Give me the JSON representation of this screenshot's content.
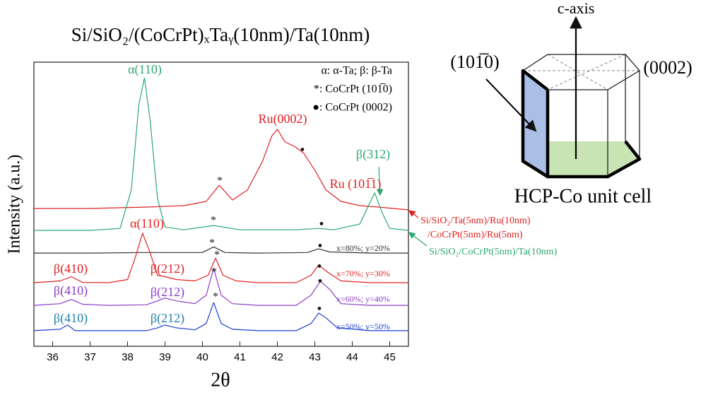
{
  "chart_data": {
    "type": "line",
    "title": "Si/SiO₂/(CoCrPt)ₓTaᵧ(10nm)/Ta(10nm)",
    "x_label": "2θ",
    "y_label": "Intensity (a.u.)",
    "xlim": [
      35.5,
      45.5
    ],
    "xticks": [
      36,
      37,
      38,
      39,
      40,
      41,
      42,
      43,
      44,
      45
    ],
    "ylim": [
      0,
      100
    ],
    "series": [
      {
        "name": [
          "Si/SiO₂/Ta(5nm)/Ru(10nm)",
          "/CoCrPt(5nm)/Ru(5nm)"
        ],
        "color": "#e02020",
        "x": [
          35.5,
          37,
          38.5,
          39.5,
          40.1,
          40.45,
          40.8,
          41.2,
          41.6,
          41.85,
          42.0,
          42.2,
          42.5,
          42.7,
          43.0,
          43.3,
          43.7,
          44.2,
          44.7,
          45.5
        ],
        "values": [
          48.5,
          48.5,
          49,
          49.5,
          51,
          56.7,
          51.5,
          55,
          65,
          74,
          76.4,
          72,
          70,
          68,
          62,
          55,
          51,
          49.5,
          49,
          48
        ]
      },
      {
        "name": "Si/SiO₂/CoCrPt(5nm)/Ta(10nm)",
        "color": "#2aa870",
        "x": [
          35.5,
          37,
          37.8,
          38.1,
          38.3,
          38.45,
          38.6,
          38.8,
          39.0,
          39.5,
          40.3,
          41,
          42.5,
          43.1,
          43.5,
          44.2,
          44.45,
          44.6,
          44.8,
          45.0,
          45.5
        ],
        "values": [
          40.8,
          40.8,
          41.5,
          55,
          85,
          94.5,
          80,
          52,
          42,
          41,
          42.5,
          41,
          41,
          41.5,
          41,
          43,
          50,
          54,
          47,
          41.5,
          40.8
        ]
      },
      {
        "name": "x=80%; y=20%",
        "color": "#333333",
        "x": [
          35.5,
          37,
          38.5,
          40.0,
          40.3,
          40.6,
          41.5,
          42.8,
          43.1,
          43.4,
          44.5,
          45.5
        ],
        "values": [
          32.8,
          32.8,
          33,
          33,
          35,
          33,
          32.8,
          33,
          34.3,
          33.2,
          32.8,
          32.8
        ]
      },
      {
        "name": "x=70%; y=30%",
        "color": "#e02020",
        "x": [
          35.5,
          36.2,
          36.5,
          36.8,
          37.5,
          38.0,
          38.2,
          38.4,
          38.6,
          38.8,
          39.0,
          39.3,
          39.8,
          40.15,
          40.35,
          40.55,
          40.9,
          41.5,
          42.5,
          42.9,
          43.1,
          43.35,
          43.7,
          44.5,
          45.5
        ],
        "values": [
          22.4,
          23,
          24.5,
          22.5,
          22.4,
          23.5,
          31,
          39.8,
          33,
          25,
          24.5,
          23.5,
          23,
          25,
          31,
          25,
          23,
          22.4,
          22.4,
          25,
          28.6,
          26,
          23,
          22.4,
          22.4
        ]
      },
      {
        "name": "x=60%; y=40%",
        "color": "#8a3cc8",
        "x": [
          35.5,
          36.2,
          36.5,
          36.8,
          37.5,
          38.5,
          38.8,
          39.0,
          39.3,
          39.8,
          40.1,
          40.3,
          40.5,
          40.8,
          41.5,
          42.5,
          42.9,
          43.15,
          43.4,
          43.7,
          44.5,
          45.5
        ],
        "values": [
          14.4,
          15,
          16.5,
          14.8,
          14.4,
          14.6,
          16,
          17,
          16,
          15,
          18,
          27.4,
          18,
          15,
          14.4,
          14.4,
          18,
          22.9,
          20,
          15,
          14.4,
          14.4
        ]
      },
      {
        "name": "x=50%; y=50%",
        "color": "#1f3fcf",
        "x": [
          35.5,
          36.2,
          36.4,
          36.6,
          37.5,
          38.5,
          38.8,
          39.0,
          39.3,
          39.8,
          40.1,
          40.3,
          40.5,
          40.8,
          41.5,
          42.5,
          42.9,
          43.1,
          43.3,
          43.6,
          44.5,
          45.5
        ],
        "values": [
          5.5,
          6,
          7.5,
          5.5,
          5.5,
          5.5,
          6.5,
          7.5,
          6.5,
          5.8,
          8,
          15.4,
          8,
          6,
          5.5,
          5.5,
          8,
          11.7,
          10,
          6.5,
          5.5,
          5.5
        ]
      }
    ],
    "notes": [
      "α: α-Ta; β: β-Ta",
      "*: CoCrPt (101̅0)",
      "●: CoCrPt (0002)"
    ],
    "annotations": [
      {
        "text": "α(110)",
        "color": "#2aa870"
      },
      {
        "text": "Ru(0002)",
        "color": "#e02020"
      },
      {
        "text": "β(312)",
        "color": "#2aa870"
      },
      {
        "text": "Ru (101̅1)",
        "color": "#e02020"
      },
      {
        "text": "α(110)",
        "color": "#e02020"
      },
      {
        "text": "β(410)",
        "color": "#e02020"
      },
      {
        "text": "β(212)",
        "color": "#e02020"
      },
      {
        "text": "β(410)",
        "color": "#8a3cc8"
      },
      {
        "text": "β(212)",
        "color": "#8a3cc8"
      },
      {
        "text": "β(410)",
        "color": "#1f7fb0"
      },
      {
        "text": "β(212)",
        "color": "#1f7fb0"
      },
      {
        "text": "*",
        "color": "#222222"
      },
      {
        "text": "*",
        "color": "#222222"
      },
      {
        "text": "*",
        "color": "#222222"
      },
      {
        "text": "*",
        "color": "#222222"
      },
      {
        "text": "*",
        "color": "#222222"
      },
      {
        "text": "*",
        "color": "#222222"
      },
      {
        "text": "●",
        "color": "#111111"
      },
      {
        "text": "●",
        "color": "#111111"
      },
      {
        "text": "●",
        "color": "#111111"
      },
      {
        "text": "●",
        "color": "#111111"
      },
      {
        "text": "●",
        "color": "#111111"
      },
      {
        "text": "●",
        "color": "#111111"
      }
    ]
  },
  "inset": {
    "axis_label": "c-axis",
    "plane_a": "(101̅0)",
    "plane_c": "(0002)",
    "caption": "HCP-Co unit cell"
  }
}
